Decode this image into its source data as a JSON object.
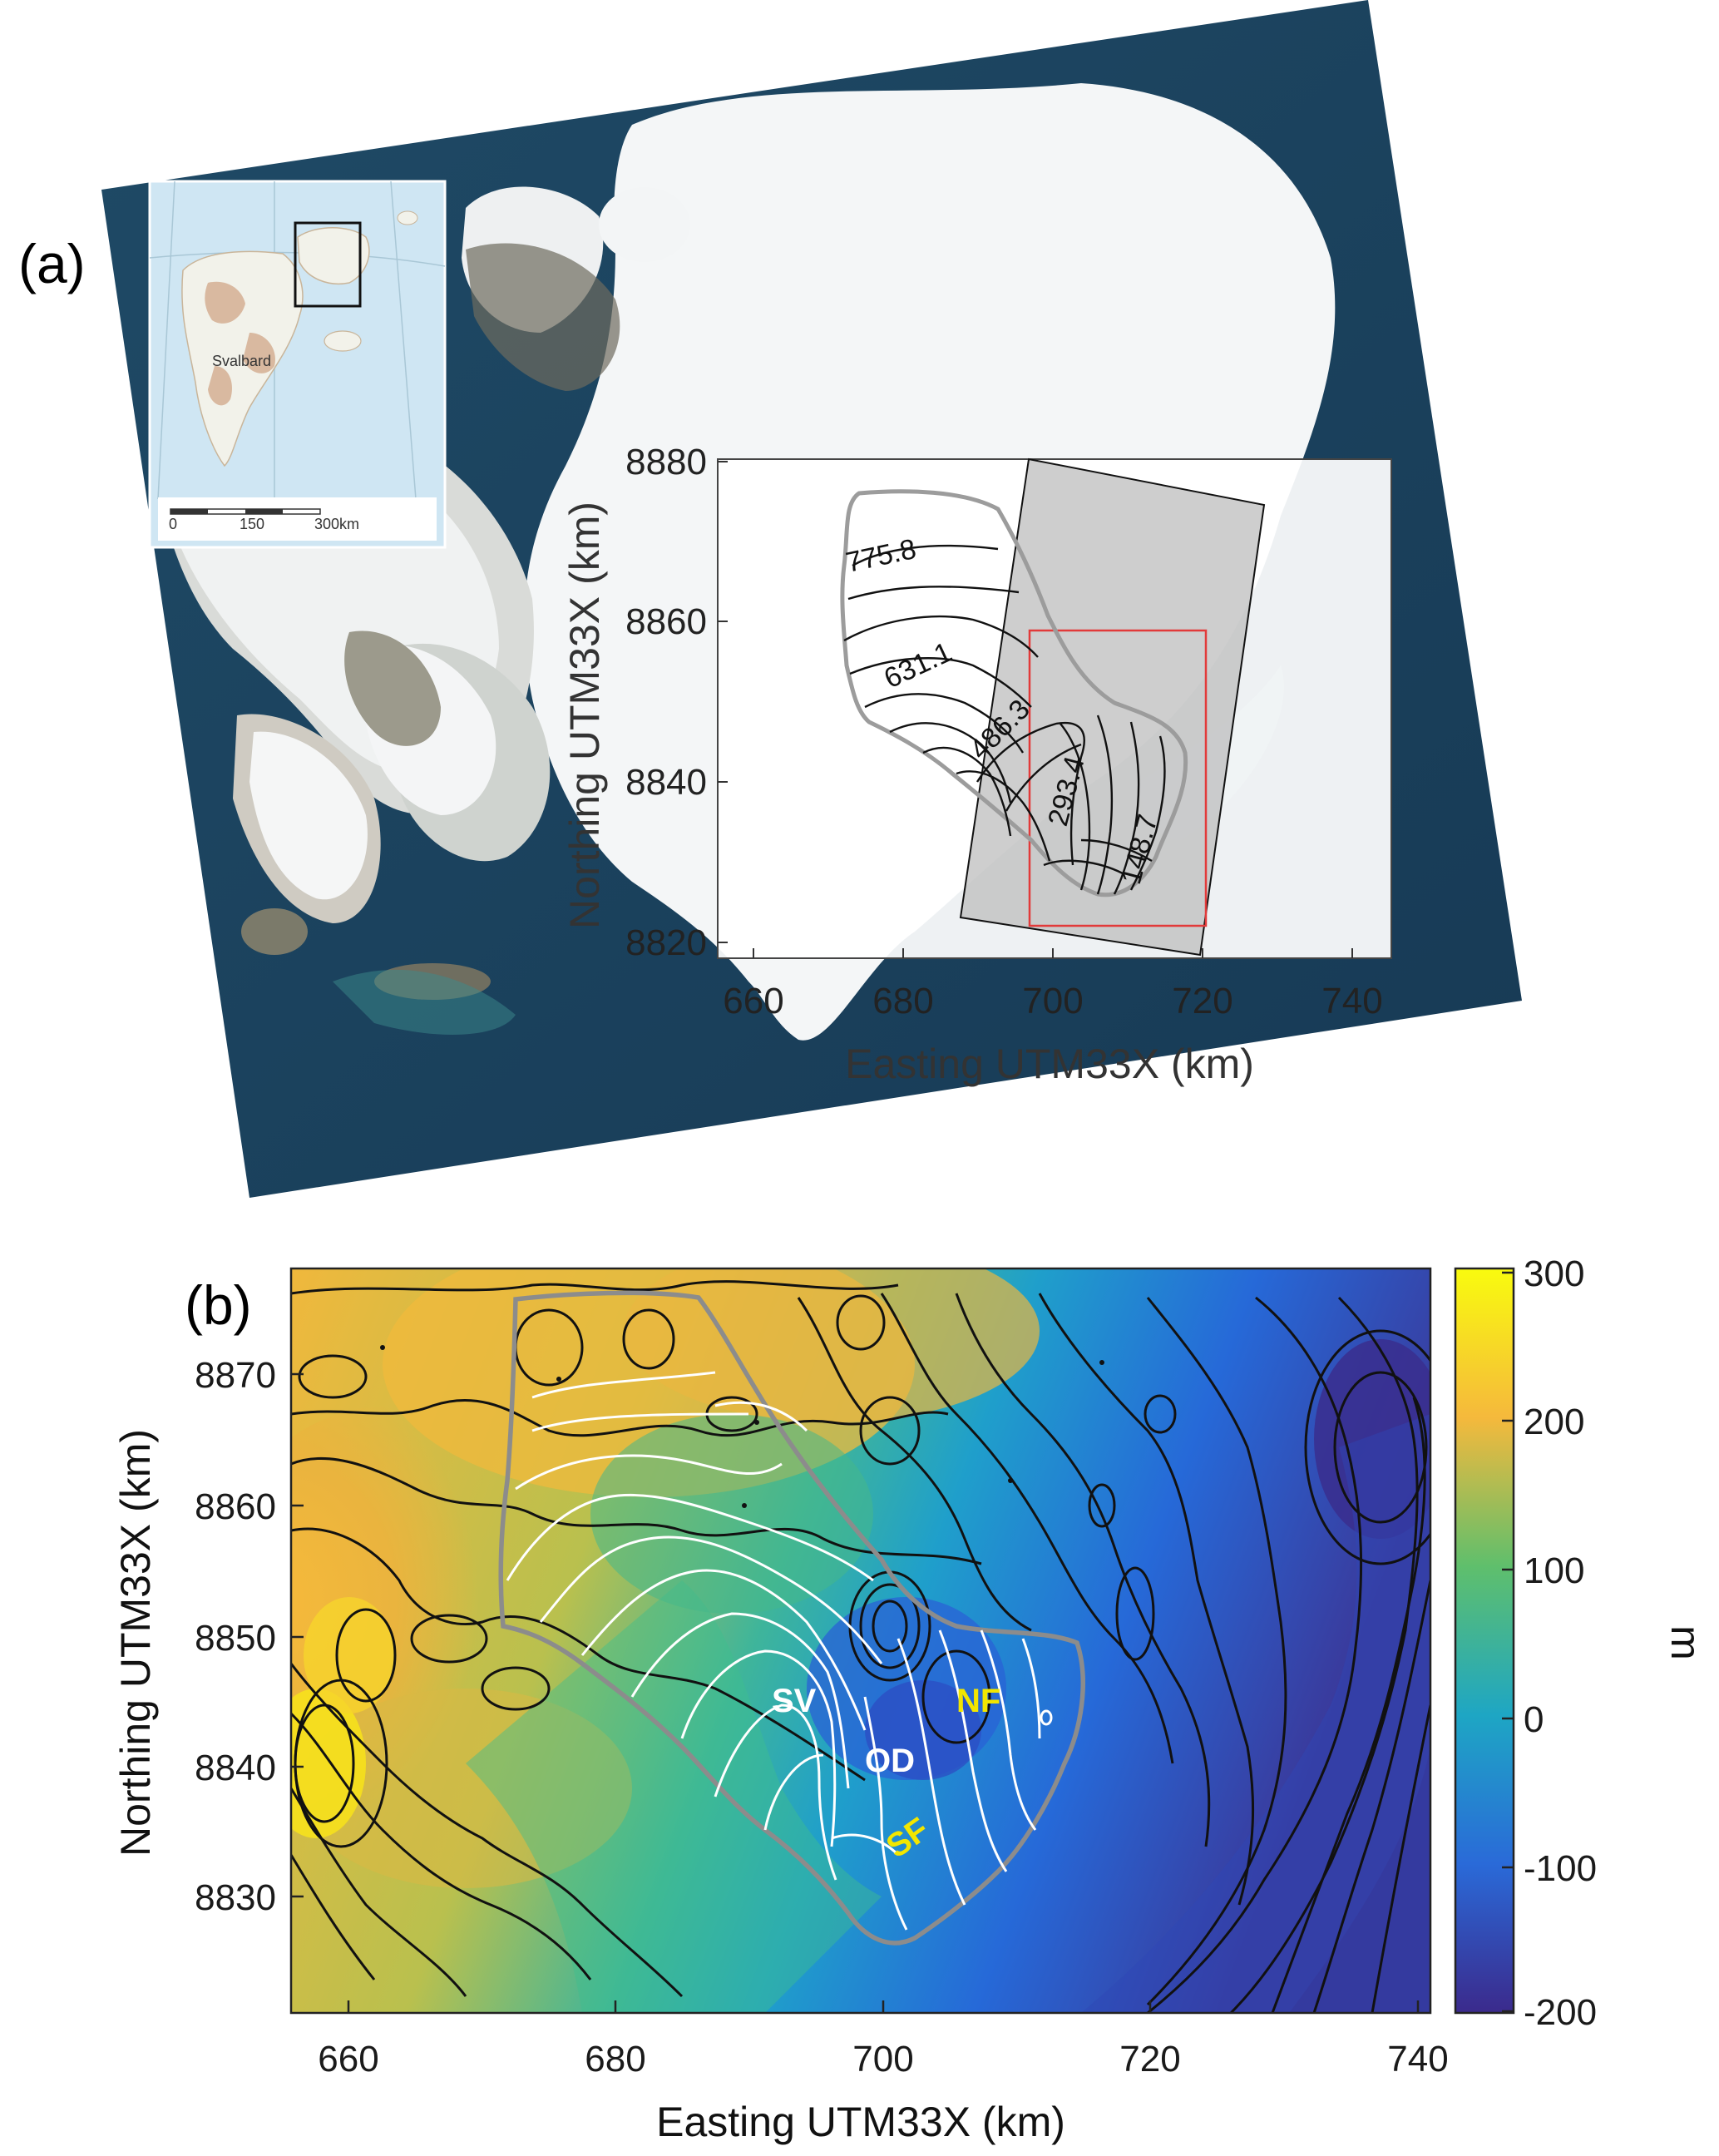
{
  "panel_a": {
    "label": "(a)",
    "inset": {
      "region_label": "Svalbard",
      "scale_labels": [
        "0",
        "150",
        "300km"
      ]
    },
    "axes": {
      "xlabel": "Easting UTM33X (km)",
      "ylabel": "Northing UTM33X (km)",
      "xticks": [
        "660",
        "680",
        "700",
        "720",
        "740"
      ],
      "yticks": [
        "8820",
        "8840",
        "8860",
        "8880"
      ]
    },
    "contour_labels": [
      "775.8",
      "631.1",
      "486.3",
      "293.4",
      "148.7"
    ]
  },
  "panel_b": {
    "label": "(b)",
    "axes": {
      "xlabel": "Easting UTM33X (km)",
      "ylabel": "Northing UTM33X (km)",
      "xticks": [
        "660",
        "680",
        "700",
        "720",
        "740"
      ],
      "yticks": [
        "8830",
        "8840",
        "8850",
        "8860",
        "8870"
      ]
    },
    "colorbar": {
      "unit": "m",
      "ticks": [
        "300",
        "200",
        "100",
        "0",
        "-100",
        "-200"
      ],
      "colors": [
        "#f9fb0e",
        "#f5b93c",
        "#5fbf6c",
        "#1ea6c4",
        "#2a6ad8",
        "#3b2a8c"
      ]
    },
    "sites": [
      {
        "name": "SV",
        "color": "#ffffff"
      },
      {
        "name": "OD",
        "color": "#ffffff"
      },
      {
        "name": "NF",
        "color": "#f2e600"
      },
      {
        "name": "SF",
        "color": "#f2e600"
      }
    ]
  }
}
